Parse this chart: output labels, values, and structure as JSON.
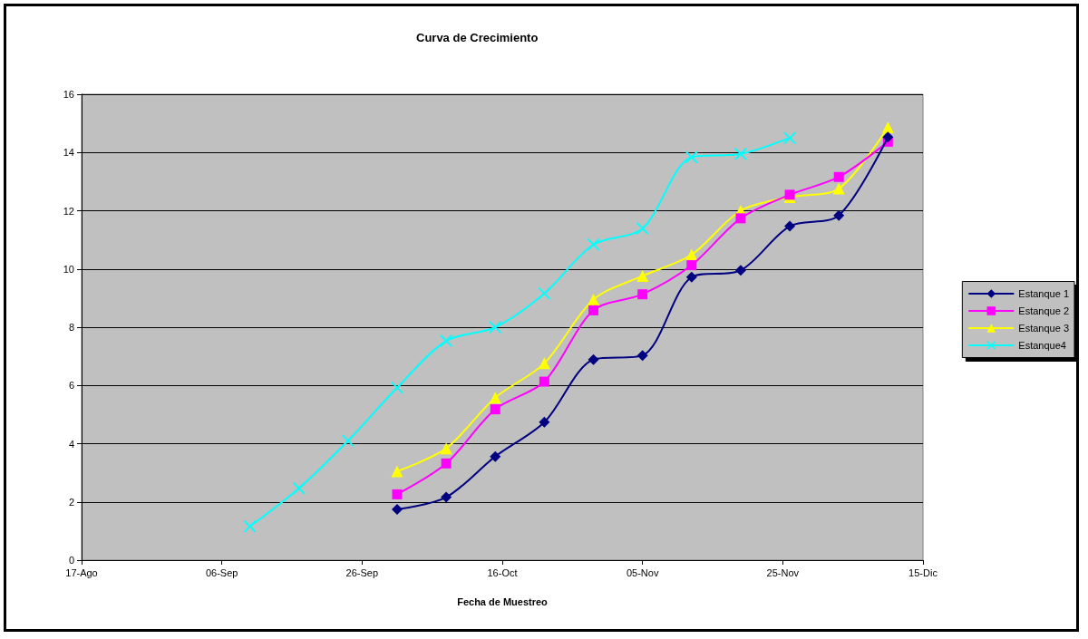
{
  "chart_data": {
    "type": "line",
    "title": "Curva de Crecimiento",
    "xlabel": "Fecha de Muestreo",
    "xlim": [
      "--08-17",
      "--12-15"
    ],
    "xticks": [
      {
        "value": "--08-17",
        "label": "17-Ago"
      },
      {
        "value": "--09-06",
        "label": "06-Sep"
      },
      {
        "value": "--09-26",
        "label": "26-Sep"
      },
      {
        "value": "--10-16",
        "label": "16-Oct"
      },
      {
        "value": "--11-05",
        "label": "05-Nov"
      },
      {
        "value": "--11-25",
        "label": "25-Nov"
      },
      {
        "value": "--12-15",
        "label": "15-Dic"
      }
    ],
    "ylim": [
      0,
      16
    ],
    "yticks": [
      0,
      2,
      4,
      6,
      8,
      10,
      12,
      14,
      16
    ],
    "grid": "y",
    "legend": "right",
    "line_style": "solid",
    "series": [
      {
        "name": "Estanque 1",
        "color": "#000080",
        "marker": "diamond",
        "x": [
          "--10-01",
          "--10-08",
          "--10-15",
          "--10-22",
          "--10-29",
          "--11-05",
          "--11-12",
          "--11-19",
          "--11-26",
          "--12-03",
          "--12-10"
        ],
        "values": [
          1.74,
          2.16,
          3.56,
          4.74,
          6.89,
          7.03,
          9.72,
          9.95,
          11.47,
          11.84,
          14.53
        ]
      },
      {
        "name": "Estanque 2",
        "color": "#ff00ff",
        "marker": "square",
        "x": [
          "--10-01",
          "--10-08",
          "--10-15",
          "--10-22",
          "--10-29",
          "--11-05",
          "--11-12",
          "--11-19",
          "--11-26",
          "--12-03",
          "--12-10"
        ],
        "values": [
          2.26,
          3.32,
          5.18,
          6.13,
          8.58,
          9.13,
          10.13,
          11.74,
          12.55,
          13.16,
          14.37
        ]
      },
      {
        "name": "Estanque 3",
        "color": "#ffff00",
        "marker": "triangle",
        "x": [
          "--10-01",
          "--10-08",
          "--10-15",
          "--10-22",
          "--10-29",
          "--11-05",
          "--11-12",
          "--11-19",
          "--11-26",
          "--12-03",
          "--12-10"
        ],
        "values": [
          3.05,
          3.84,
          5.58,
          6.76,
          8.95,
          9.76,
          10.49,
          12.0,
          12.47,
          12.76,
          14.86
        ]
      },
      {
        "name": "Estanque4",
        "color": "#00ffff",
        "marker": "cross",
        "x": [
          "--09-10",
          "--09-17",
          "--09-24",
          "--10-01",
          "--10-08",
          "--10-15",
          "--10-22",
          "--10-29",
          "--11-05",
          "--11-12",
          "--11-19",
          "--11-26"
        ],
        "values": [
          1.16,
          2.47,
          4.1,
          5.92,
          7.53,
          8.0,
          9.16,
          10.84,
          11.39,
          13.84,
          13.95,
          14.5
        ]
      }
    ]
  }
}
